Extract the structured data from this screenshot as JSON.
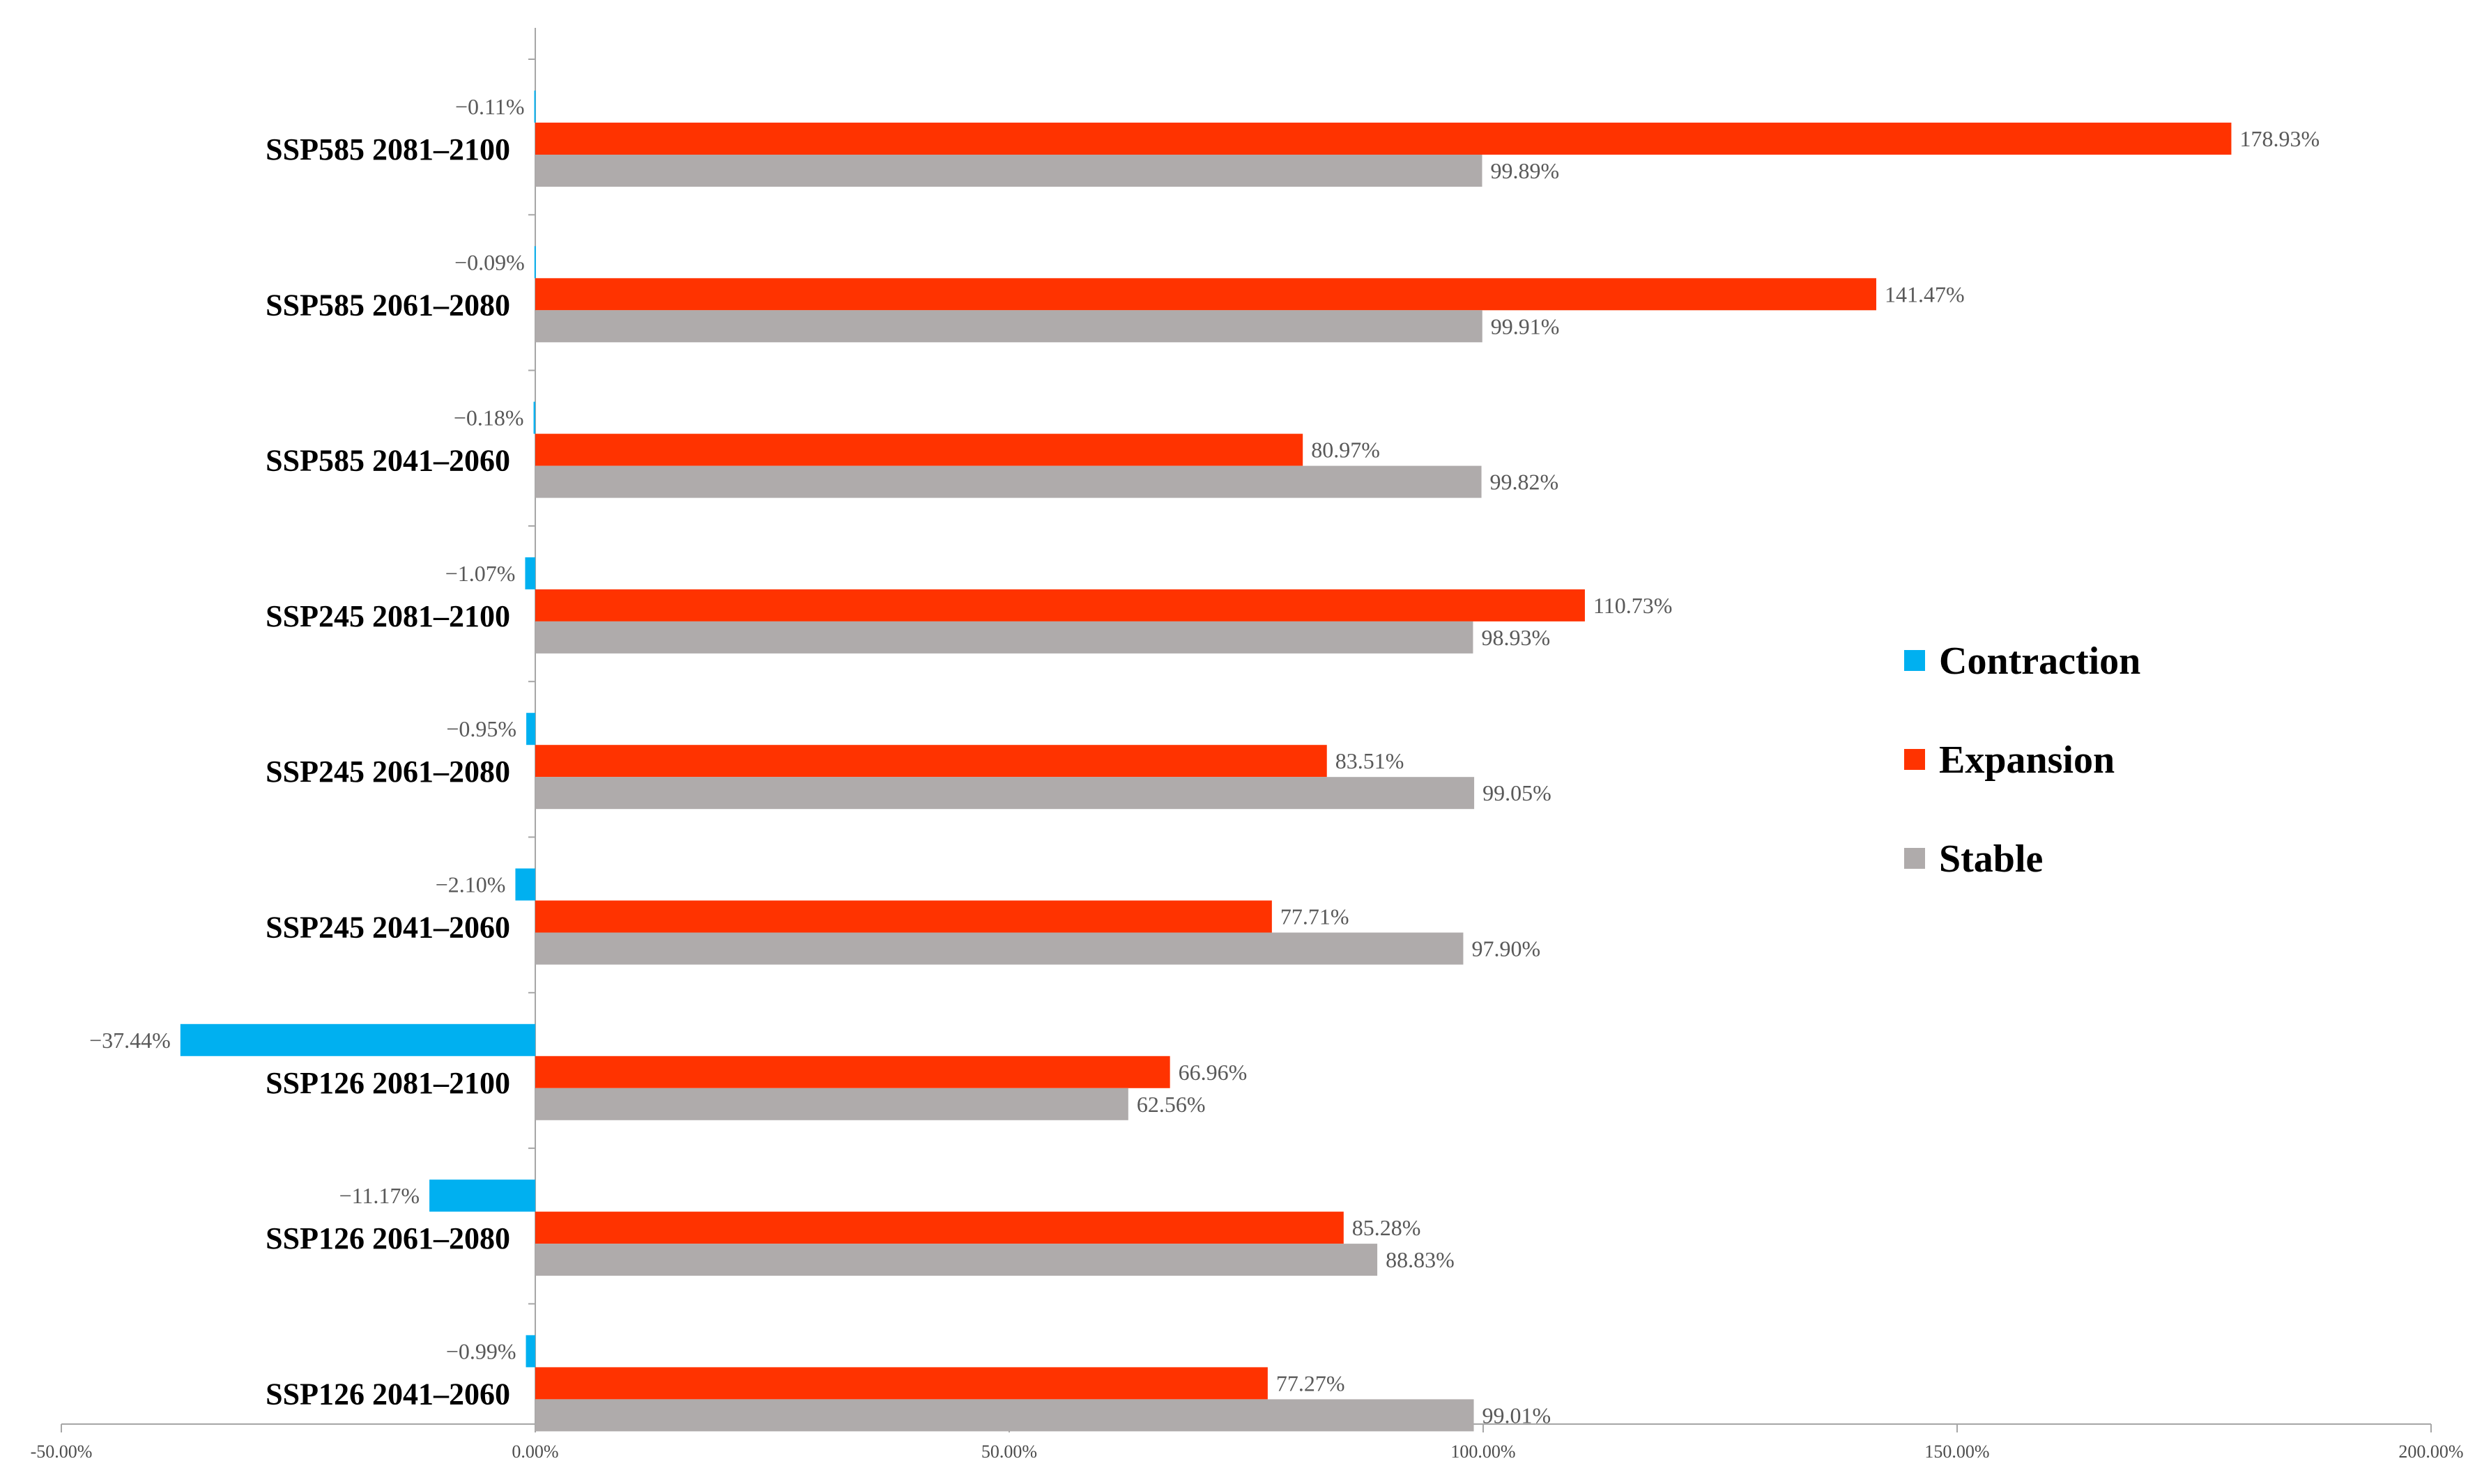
{
  "chart_data": {
    "type": "bar",
    "orientation": "horizontal",
    "title": "",
    "xlabel": "",
    "ylabel": "",
    "xlim": [
      -50,
      200
    ],
    "x_ticks": [
      -50,
      0,
      50,
      100,
      150,
      200
    ],
    "x_tick_labels": [
      "-50.00%",
      "0.00%",
      "50.00%",
      "100.00%",
      "150.00%",
      "200.00%"
    ],
    "grid": false,
    "legend_position": "right",
    "categories": [
      "SSP585 2081–2100",
      "SSP585 2061–2080",
      "SSP585 2041–2060",
      "SSP245 2081–2100",
      "SSP245 2061–2080",
      "SSP245 2041–2060",
      "SSP126 2081–2100",
      "SSP126 2061–2080",
      "SSP126 2041–2060"
    ],
    "series": [
      {
        "name": "Contraction",
        "color": "#00b0f0",
        "values": [
          -0.11,
          -0.09,
          -0.18,
          -1.07,
          -0.95,
          -2.1,
          -37.44,
          -11.17,
          -0.99
        ],
        "labels": [
          "−0.11%",
          "−0.09%",
          "−0.18%",
          "−1.07%",
          "−0.95%",
          "−2.10%",
          "−37.44%",
          "−11.17%",
          "−0.99%"
        ]
      },
      {
        "name": "Expansion",
        "color": "#ff3300",
        "values": [
          178.93,
          141.47,
          80.97,
          110.73,
          83.51,
          77.71,
          66.96,
          85.28,
          77.27
        ],
        "labels": [
          "178.93%",
          "141.47%",
          "80.97%",
          "110.73%",
          "83.51%",
          "77.71%",
          "66.96%",
          "85.28%",
          "77.27%"
        ]
      },
      {
        "name": "Stable",
        "color": "#afabab",
        "values": [
          99.89,
          99.91,
          99.82,
          98.93,
          99.05,
          97.9,
          62.56,
          88.83,
          99.01
        ],
        "labels": [
          "99.89%",
          "99.91%",
          "99.82%",
          "98.93%",
          "99.05%",
          "97.90%",
          "62.56%",
          "88.83%",
          "99.01%"
        ]
      }
    ]
  }
}
